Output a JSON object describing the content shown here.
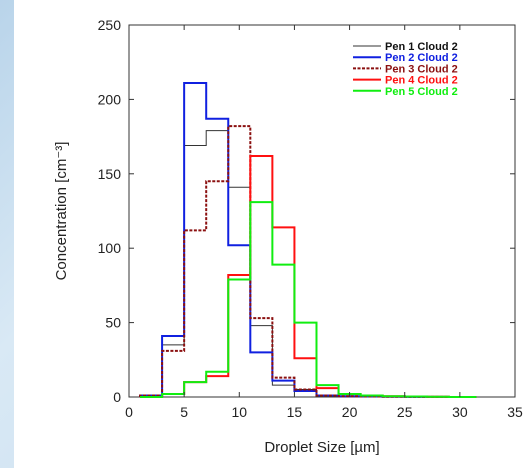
{
  "chart_data": {
    "type": "line",
    "style": "step-histogram",
    "xlabel": "Droplet Size [µm]",
    "ylabel": "Concentration [cm⁻³]",
    "xlim": [
      0,
      35
    ],
    "ylim": [
      0,
      250
    ],
    "xticks": [
      "0",
      "5",
      "10",
      "15",
      "20",
      "25",
      "30",
      "35"
    ],
    "yticks": [
      "0",
      "50",
      "100",
      "150",
      "200",
      "250"
    ],
    "grid": false,
    "legend_position": "top-right",
    "bin_edges": [
      1,
      3,
      5,
      7,
      9,
      11,
      13,
      15,
      17,
      19,
      21,
      23,
      25,
      27,
      29,
      31.5
    ],
    "series": [
      {
        "name": "Pen 1 Cloud 2",
        "color": "#333333",
        "dash": "none",
        "width": 1,
        "values": [
          1,
          35,
          169,
          179,
          141,
          48,
          8,
          5,
          1,
          0.5,
          0.3,
          0.2,
          0.1,
          0.1,
          0
        ]
      },
      {
        "name": "Pen 2 Cloud 2",
        "color": "#1020e0",
        "dash": "none",
        "width": 2,
        "values": [
          1,
          41,
          211,
          187,
          102,
          30,
          11,
          4,
          1,
          0.5,
          0.3,
          0.2,
          0.1,
          0.1,
          0
        ]
      },
      {
        "name": "Pen 3 Cloud 2",
        "color": "#8b1010",
        "dash": "3,1.5",
        "width": 2,
        "values": [
          1,
          31,
          112,
          145,
          182,
          53,
          13,
          5,
          1,
          0.5,
          0.3,
          0.2,
          0.1,
          0.1,
          0
        ]
      },
      {
        "name": "Pen 4 Cloud 2",
        "color": "#ff1010",
        "dash": "none",
        "width": 2,
        "values": [
          0,
          2,
          10,
          14,
          82,
          162,
          114,
          26,
          6,
          2,
          1,
          0.5,
          0.3,
          0.2,
          0
        ]
      },
      {
        "name": "Pen 5 Cloud 2",
        "color": "#10ee10",
        "dash": "none",
        "width": 2,
        "values": [
          0,
          2,
          10,
          17,
          79,
          131,
          89,
          50,
          8,
          2,
          1,
          0.5,
          0.3,
          0.2,
          0
        ]
      }
    ]
  }
}
